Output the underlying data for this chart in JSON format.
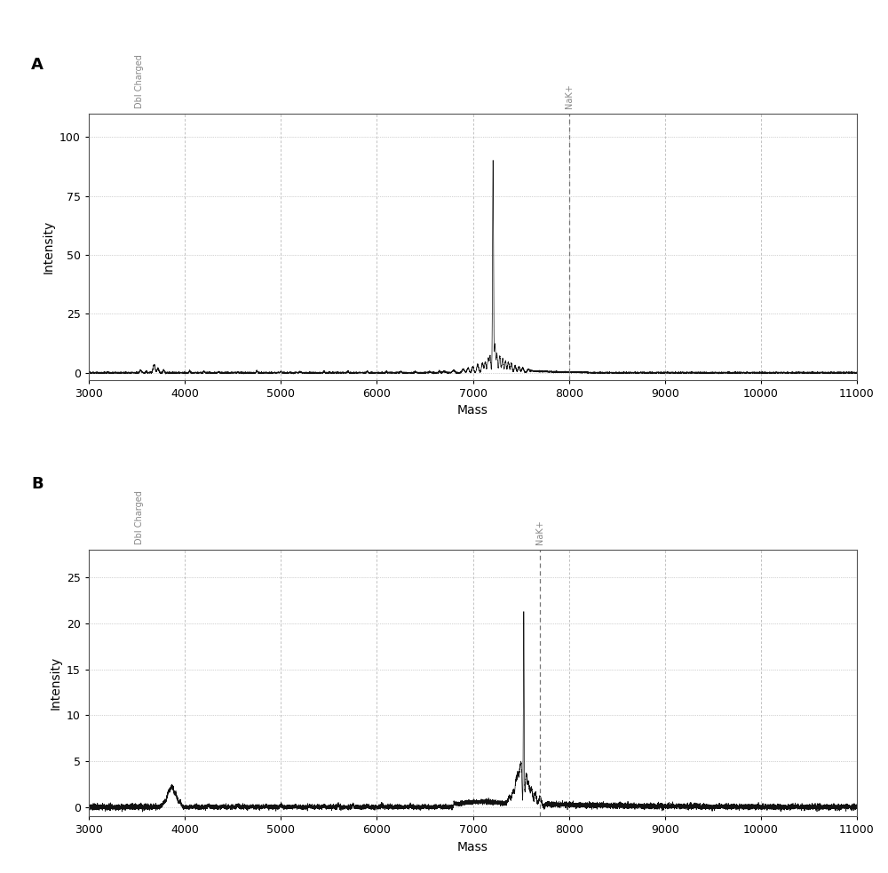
{
  "panel_A": {
    "xlim": [
      3000,
      11000
    ],
    "ylim": [
      -3,
      110
    ],
    "yticks": [
      0,
      25,
      50,
      75,
      100
    ],
    "xticks": [
      3000,
      4000,
      5000,
      6000,
      7000,
      8000,
      9000,
      10000,
      11000
    ],
    "xlabel": "Mass",
    "ylabel": "Intensity",
    "nak_line_x": 8000,
    "nak_label": "NaK+",
    "dbl_charged_x": 3530,
    "main_peak_x": 7210,
    "main_peak_y": 90,
    "label": "A"
  },
  "panel_B": {
    "xlim": [
      3000,
      11000
    ],
    "ylim": [
      -1,
      28
    ],
    "yticks": [
      0,
      5,
      10,
      15,
      20,
      25
    ],
    "xticks": [
      3000,
      4000,
      5000,
      6000,
      7000,
      8000,
      9000,
      10000,
      11000
    ],
    "xlabel": "Mass",
    "ylabel": "Intensity",
    "nak_line_x": 7700,
    "nak_label": "NaK+",
    "dbl_charged_x": 3530,
    "main_peak_x": 7530,
    "main_peak_y": 21,
    "label": "B"
  },
  "background_color": "#ffffff",
  "grid_color_h": "#aaaaaa",
  "grid_color_v": "#aaaaaa",
  "line_color": "#111111",
  "dashed_line_color": "#777777",
  "annotation_color": "#888888",
  "font_size_label": 10,
  "font_size_tick": 9,
  "font_size_panel": 13,
  "font_size_annot": 7
}
